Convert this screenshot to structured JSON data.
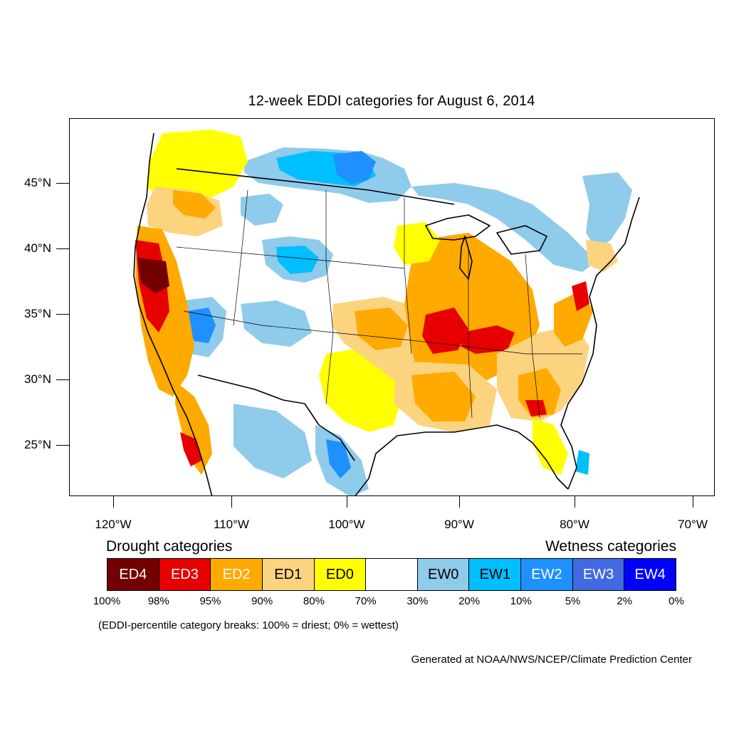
{
  "title": "12-week EDDI categories for August 6, 2014",
  "axes": {
    "lat_labels": [
      "45°N",
      "40°N",
      "35°N",
      "30°N",
      "25°N"
    ],
    "lon_labels": [
      "120°W",
      "110°W",
      "100°W",
      "90°W",
      "80°W",
      "70°W"
    ]
  },
  "legend": {
    "drought_heading": "Drought categories",
    "wetness_heading": "Wetness categories",
    "categories": [
      {
        "label": "ED4",
        "color": "#730000",
        "text_color": "#ffffff"
      },
      {
        "label": "ED3",
        "color": "#e60000",
        "text_color": "#ffffff"
      },
      {
        "label": "ED2",
        "color": "#ffaa00",
        "text_color": "#ffffff"
      },
      {
        "label": "ED1",
        "color": "#fcd37f",
        "text_color": "#000000"
      },
      {
        "label": "ED0",
        "color": "#ffff00",
        "text_color": "#000000"
      },
      {
        "label": "",
        "color": "#ffffff",
        "text_color": "#000000"
      },
      {
        "label": "EW0",
        "color": "#8fcbeb",
        "text_color": "#000000"
      },
      {
        "label": "EW1",
        "color": "#00bfff",
        "text_color": "#000000"
      },
      {
        "label": "EW2",
        "color": "#1e90ff",
        "text_color": "#ffffff"
      },
      {
        "label": "EW3",
        "color": "#4169e1",
        "text_color": "#ffffff"
      },
      {
        "label": "EW4",
        "color": "#0000ff",
        "text_color": "#ffffff"
      }
    ],
    "percent_breaks": [
      "100%",
      "98%",
      "95%",
      "90%",
      "80%",
      "70%",
      "30%",
      "20%",
      "10%",
      "5%",
      "2%",
      "0%"
    ]
  },
  "note": "(EDDI-percentile category breaks: 100% = driest; 0% = wettest)",
  "credit": "Generated at NOAA/NWS/NCEP/Climate Prediction Center"
}
